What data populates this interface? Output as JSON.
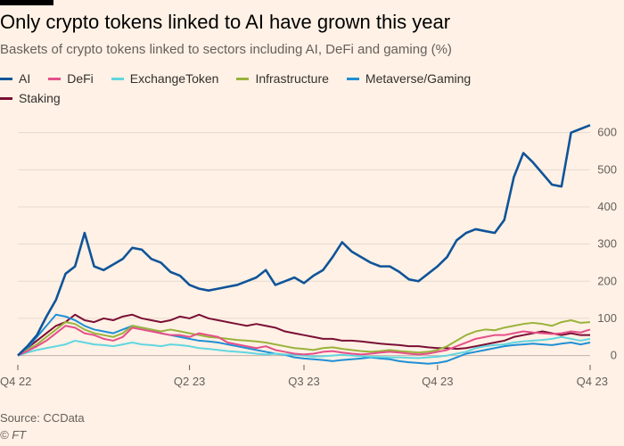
{
  "header": {
    "title": "Only crypto tokens linked to AI have grown this year",
    "subtitle": "Baskets of crypto tokens linked to sectors including AI, DeFi and gaming (%)"
  },
  "footer": {
    "source": "Source: CCData",
    "copyright": "© FT"
  },
  "colors": {
    "background": "#fff1e5",
    "grid": "#e6d9ce",
    "axis_text": "#66605c"
  },
  "chart_data": {
    "type": "line",
    "title": "Only crypto tokens linked to AI have grown this year",
    "subtitle": "Baskets of crypto tokens linked to sectors including AI, DeFi and gaming (%)",
    "xlabel": "",
    "ylabel": "%",
    "ylim": [
      -25,
      640
    ],
    "xlim": [
      0,
      60
    ],
    "yticks": [
      0,
      100,
      200,
      300,
      400,
      500,
      600
    ],
    "xticks": [
      {
        "label": "Q4 22",
        "x": 0
      },
      {
        "label": "Q2 23",
        "x": 18
      },
      {
        "label": "Q3 23",
        "x": 30
      },
      {
        "label": "Q4 23",
        "x": 44
      },
      {
        "label": "Q4 23",
        "x": 60
      }
    ],
    "grid": true,
    "legend_position": "top-left",
    "series": [
      {
        "name": "AI",
        "color": "#0f5499",
        "values": [
          0,
          25,
          55,
          105,
          150,
          220,
          240,
          330,
          240,
          230,
          245,
          260,
          290,
          285,
          260,
          250,
          225,
          215,
          190,
          180,
          175,
          180,
          185,
          190,
          200,
          210,
          230,
          190,
          200,
          210,
          195,
          215,
          230,
          265,
          305,
          280,
          265,
          250,
          240,
          240,
          225,
          205,
          200,
          220,
          240,
          265,
          310,
          330,
          340,
          335,
          330,
          365,
          480,
          545,
          520,
          490,
          460,
          455,
          600,
          610,
          620
        ]
      },
      {
        "name": "DeFi",
        "color": "#e54f8a",
        "values": [
          0,
          12,
          25,
          40,
          60,
          80,
          75,
          60,
          55,
          45,
          40,
          50,
          75,
          70,
          65,
          60,
          55,
          55,
          50,
          60,
          55,
          50,
          35,
          30,
          25,
          20,
          25,
          15,
          10,
          5,
          3,
          5,
          10,
          12,
          8,
          5,
          3,
          5,
          8,
          10,
          8,
          5,
          3,
          5,
          10,
          15,
          25,
          35,
          45,
          50,
          55,
          55,
          60,
          65,
          62,
          60,
          58,
          60,
          65,
          62,
          70
        ]
      },
      {
        "name": "ExchangeToken",
        "color": "#60d6e0",
        "values": [
          0,
          8,
          15,
          20,
          25,
          30,
          40,
          35,
          30,
          28,
          25,
          30,
          35,
          30,
          28,
          25,
          30,
          28,
          25,
          20,
          18,
          15,
          12,
          10,
          8,
          5,
          3,
          5,
          3,
          2,
          0,
          -3,
          -2,
          0,
          2,
          0,
          -2,
          -3,
          -4,
          -5,
          -5,
          -6,
          -7,
          -5,
          -3,
          0,
          5,
          10,
          20,
          25,
          28,
          30,
          35,
          38,
          40,
          42,
          45,
          50,
          45,
          40,
          45
        ]
      },
      {
        "name": "Infrastructure",
        "color": "#9ab33b",
        "values": [
          0,
          15,
          30,
          50,
          70,
          90,
          85,
          70,
          60,
          55,
          50,
          60,
          80,
          75,
          70,
          65,
          70,
          65,
          60,
          55,
          50,
          48,
          45,
          42,
          40,
          38,
          35,
          30,
          25,
          20,
          18,
          15,
          20,
          22,
          18,
          15,
          12,
          10,
          12,
          15,
          12,
          10,
          8,
          10,
          15,
          25,
          40,
          55,
          65,
          70,
          68,
          75,
          80,
          85,
          88,
          85,
          80,
          90,
          95,
          88,
          90
        ]
      },
      {
        "name": "Metaverse/Gaming",
        "color": "#1f8fd6",
        "values": [
          0,
          20,
          50,
          80,
          110,
          105,
          95,
          80,
          70,
          65,
          60,
          70,
          80,
          75,
          70,
          60,
          55,
          50,
          45,
          40,
          38,
          35,
          30,
          25,
          20,
          15,
          10,
          5,
          2,
          -5,
          -8,
          -10,
          -12,
          -15,
          -12,
          -10,
          -8,
          -5,
          -8,
          -10,
          -15,
          -18,
          -20,
          -22,
          -20,
          -15,
          -5,
          5,
          10,
          15,
          20,
          25,
          28,
          30,
          32,
          30,
          28,
          32,
          35,
          30,
          35
        ]
      },
      {
        "name": "Staking",
        "color": "#7a0f35",
        "values": [
          0,
          20,
          40,
          60,
          80,
          90,
          110,
          95,
          90,
          100,
          95,
          105,
          110,
          100,
          95,
          90,
          95,
          105,
          100,
          110,
          100,
          95,
          90,
          85,
          80,
          85,
          80,
          75,
          65,
          60,
          55,
          50,
          45,
          45,
          40,
          40,
          38,
          35,
          32,
          30,
          28,
          25,
          25,
          22,
          20,
          20,
          18,
          20,
          25,
          30,
          35,
          40,
          50,
          55,
          60,
          65,
          60,
          55,
          60,
          55,
          55
        ]
      }
    ]
  }
}
